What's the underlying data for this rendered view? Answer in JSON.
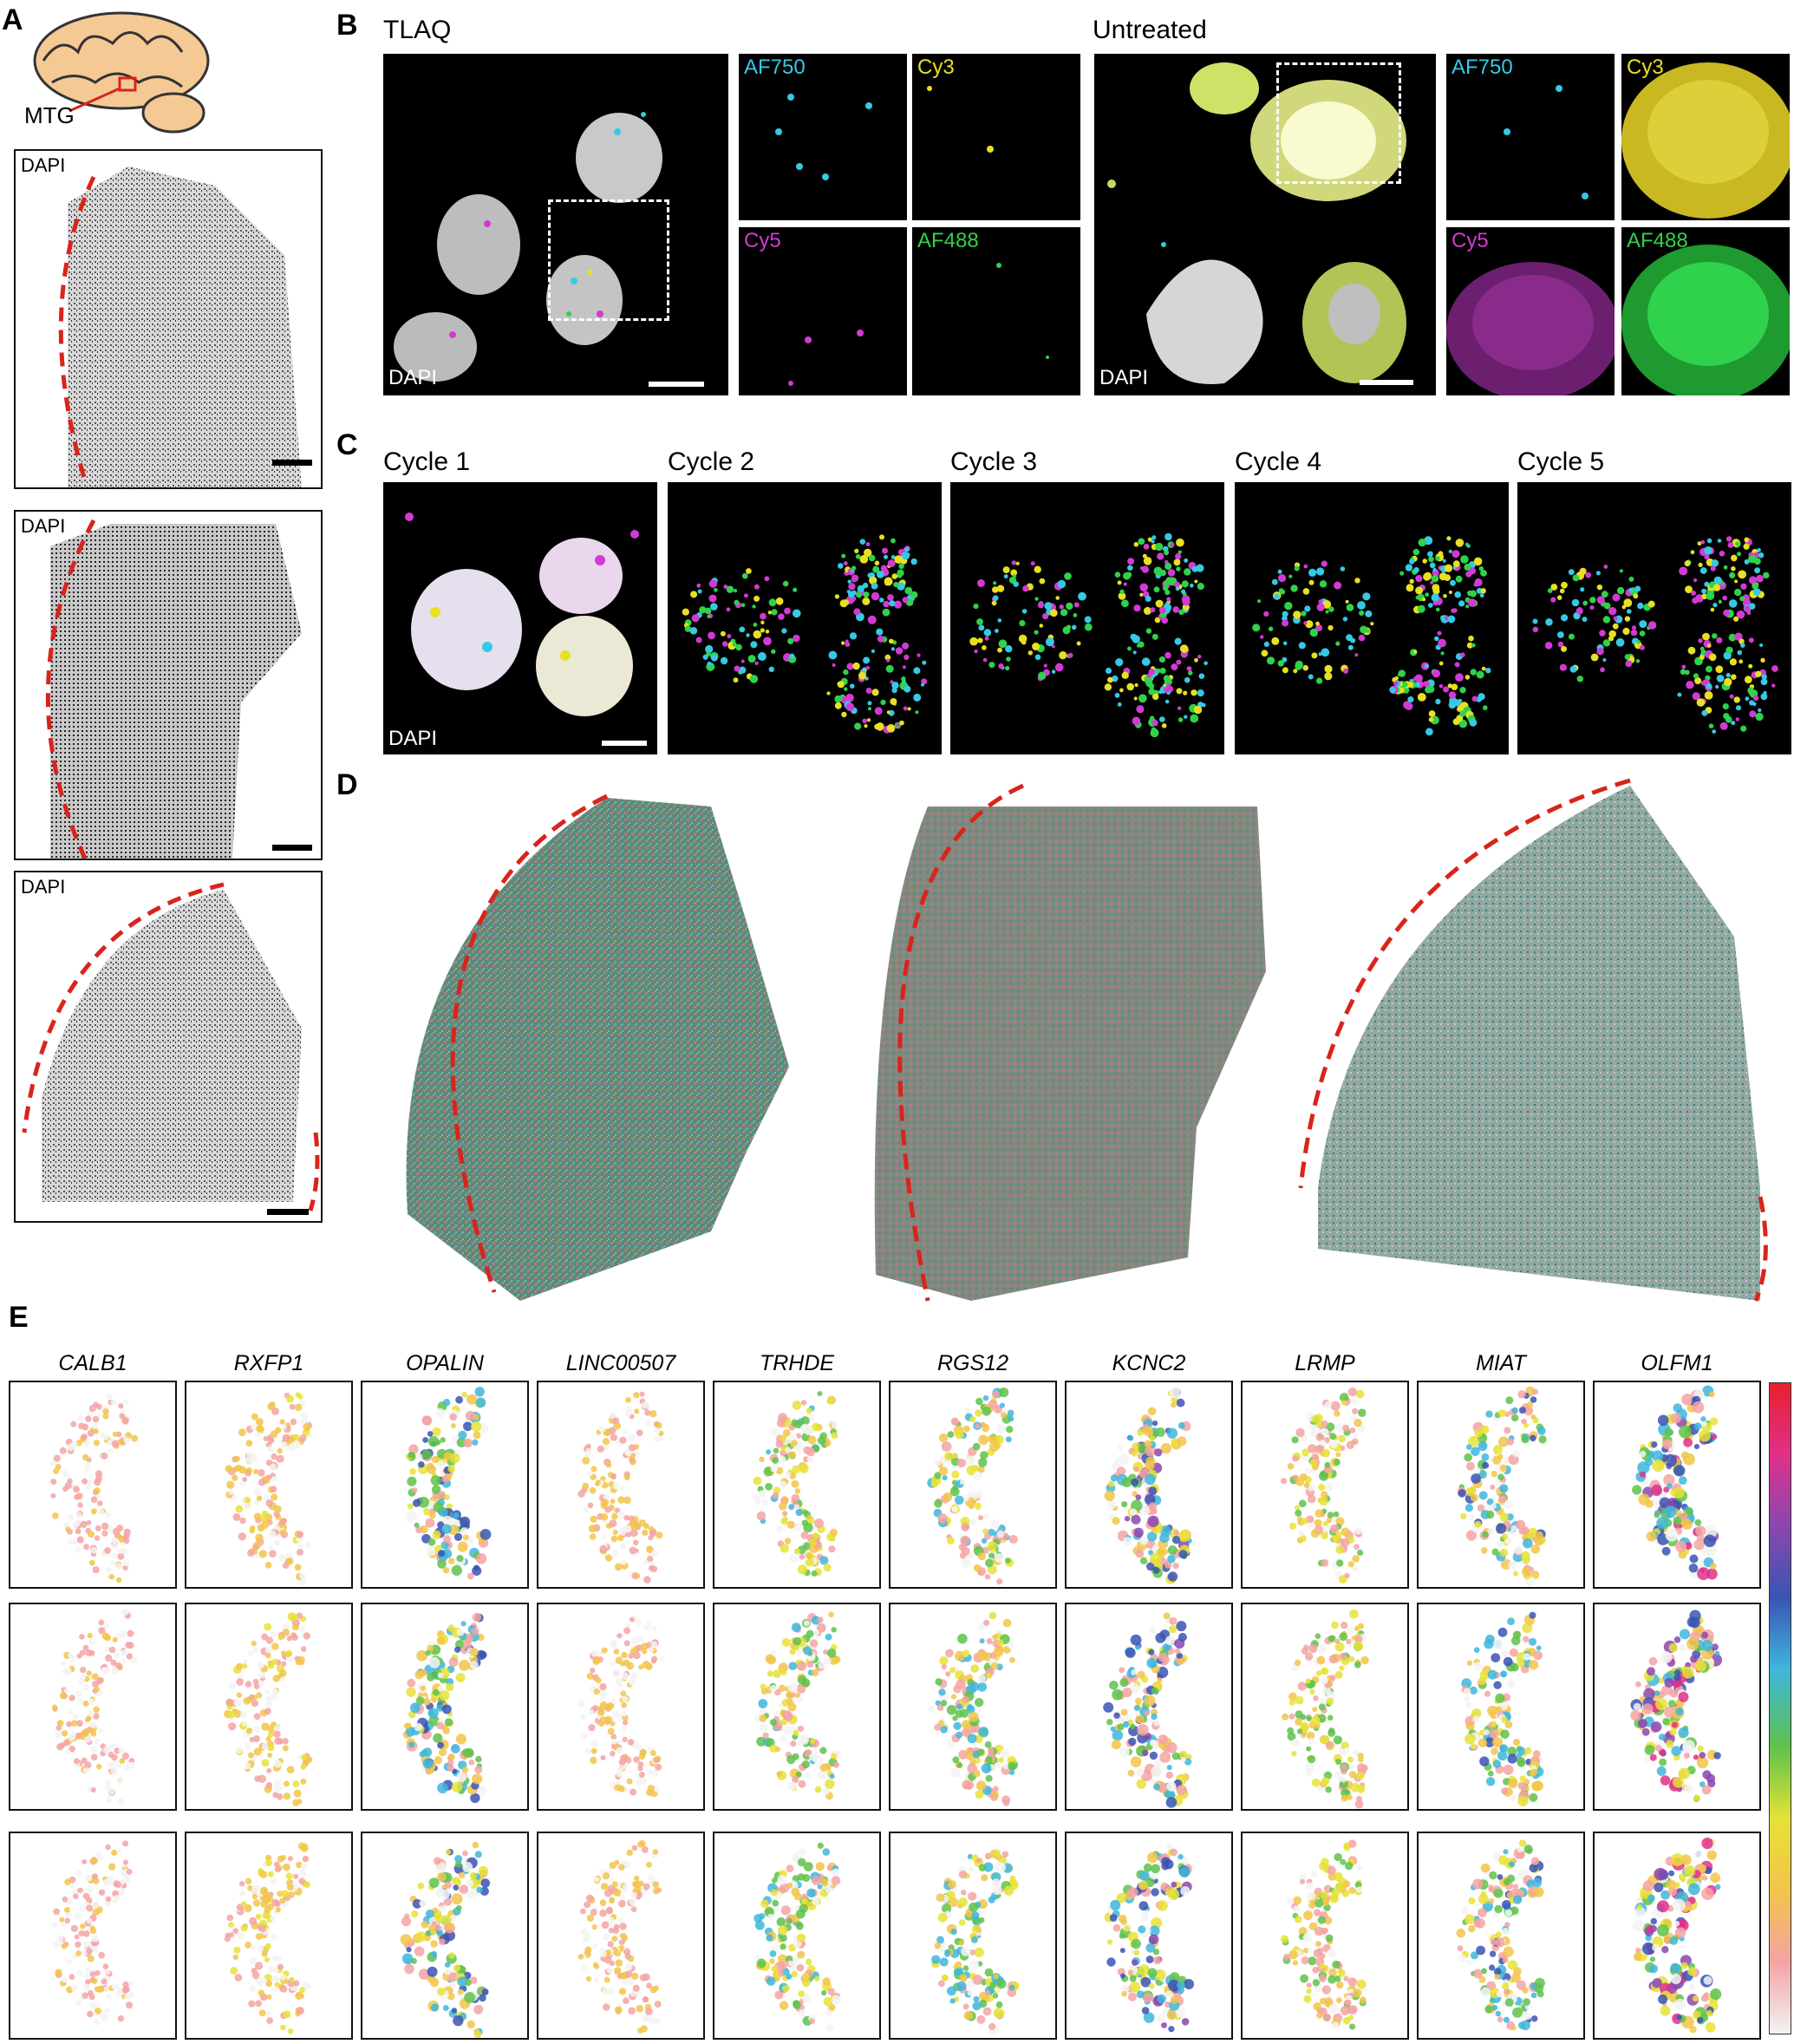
{
  "panels": {
    "A": "A",
    "B": "B",
    "C": "C",
    "D": "D",
    "E": "E"
  },
  "panelA": {
    "region_label": "MTG",
    "section_labels": [
      "DAPI",
      "DAPI",
      "DAPI"
    ]
  },
  "panelB": {
    "left_title": "TLAQ",
    "right_title": "Untreated",
    "dapi_label": "DAPI",
    "channels": [
      "AF750",
      "Cy3",
      "Cy5",
      "AF488"
    ],
    "channel_colors": {
      "AF750": "#35c9e6",
      "Cy3": "#e8e020",
      "Cy5": "#d23ad2",
      "AF488": "#2fd24a"
    }
  },
  "panelC": {
    "cycles": [
      "Cycle 1",
      "Cycle 2",
      "Cycle 3",
      "Cycle 4",
      "Cycle 5"
    ],
    "dapi_label": "DAPI"
  },
  "panelE": {
    "genes": [
      "CALB1",
      "RXFP1",
      "OPALIN",
      "LINC00507",
      "TRHDE",
      "RGS12",
      "KCNC2",
      "LRMP",
      "MIAT",
      "OLFM1"
    ],
    "colorbar": [
      "#f3f3f3",
      "#f4a3a3",
      "#f2c44a",
      "#e6e236",
      "#5fc24a",
      "#3fb6dc",
      "#3a54b4",
      "#8a47b0",
      "#e0308a",
      "#e8202c"
    ]
  },
  "colors": {
    "outline_red": "#d9241c"
  }
}
